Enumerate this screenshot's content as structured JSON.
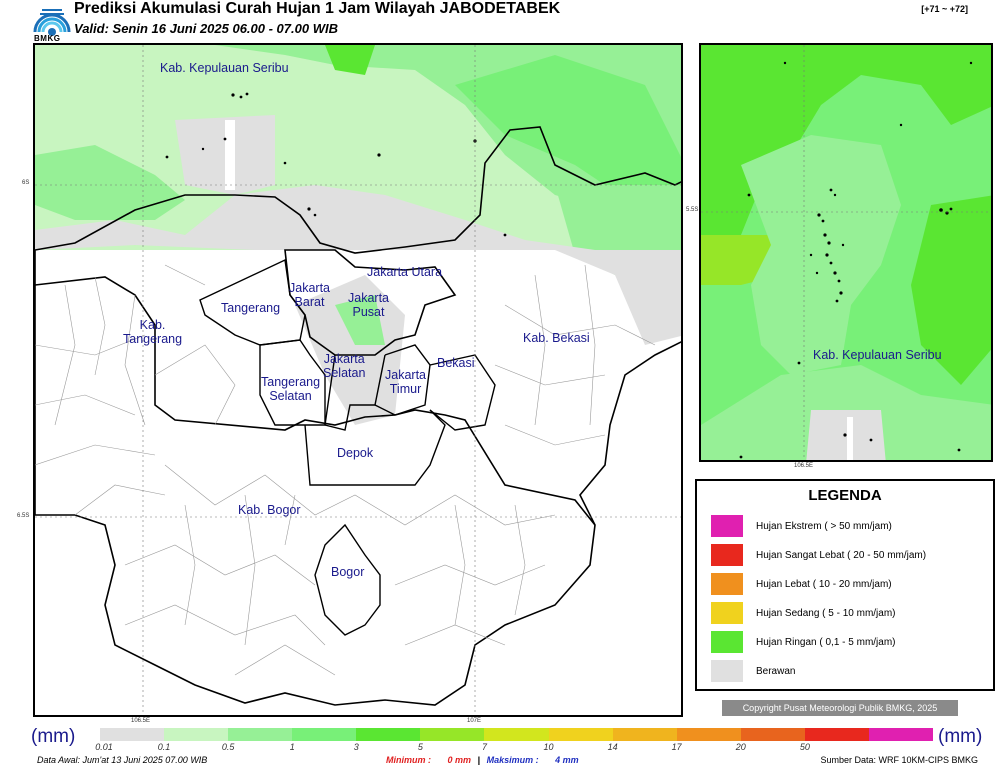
{
  "header": {
    "logo_text": "BMKG",
    "title": "Prediksi Akumulasi Curah Hujan 1 Jam Wilayah JABODETABEK",
    "subtitle": "Valid: Senin 16 Juni 2025 06.00 - 07.00 WIB",
    "range": "[+71 ~ +72]"
  },
  "main_map": {
    "labels": [
      "Kab. Kepulauan Seribu",
      "Jakarta Utara",
      "Jakarta\nBarat",
      "Jakarta\nPusat",
      "Tangerang",
      "Kab.\nTangerang",
      "Jakarta\nSelatan",
      "Jakarta\nTimur",
      "Bekasi",
      "Kab. Bekasi",
      "Tangerang\nSelatan",
      "Depok",
      "Kab. Bogor",
      "Bogor"
    ],
    "lat_ticks": [
      "6S",
      "6.5S"
    ],
    "lon_ticks": [
      "106.5E",
      "107E"
    ]
  },
  "inset_map": {
    "label": "Kab. Kepulauan Seribu",
    "lat_tick": "5.5S",
    "lon_tick": "106.5E"
  },
  "legend": {
    "title": "LEGENDA",
    "items": [
      {
        "label": "Hujan Ekstrem ( > 50 mm/jam)",
        "color": "#e020b0"
      },
      {
        "label": "Hujan Sangat Lebat ( 20 - 50 mm/jam)",
        "color": "#e8281e"
      },
      {
        "label": "Hujan Lebat ( 10 - 20 mm/jam)",
        "color": "#f0901e"
      },
      {
        "label": "Hujan Sedang ( 5 - 10 mm/jam)",
        "color": "#f0d21e"
      },
      {
        "label": "Hujan Ringan ( 0,1 - 5 mm/jam)",
        "color": "#5ae632"
      },
      {
        "label": "Berawan",
        "color": "#e0e0e0"
      }
    ]
  },
  "copyright": "Copyright Pusat Meteorologi Publik BMKG, 2025",
  "colorbar": {
    "unit": "(mm)",
    "ticks": [
      "0.01",
      "0.1",
      "0.5",
      "1",
      "3",
      "5",
      "7",
      "10",
      "14",
      "17",
      "20",
      "50"
    ],
    "colors": [
      "#e0e0e0",
      "#c8f5c0",
      "#96f096",
      "#78f078",
      "#5ae632",
      "#96e628",
      "#d2e61e",
      "#f0d21e",
      "#f0b41e",
      "#f0901e",
      "#e8641e",
      "#e8281e",
      "#e020b0"
    ]
  },
  "footer": {
    "data_awal": "Data Awal: Jum'at 13 Juni 2025 07.00 WIB",
    "minimum_label": "Minimum :",
    "minimum_value": "0 mm",
    "separator": "|",
    "maximum_label": "Maksimum :",
    "maximum_value": "4 mm",
    "source": "Sumber Data: WRF 10KM-CIPS BMKG"
  }
}
